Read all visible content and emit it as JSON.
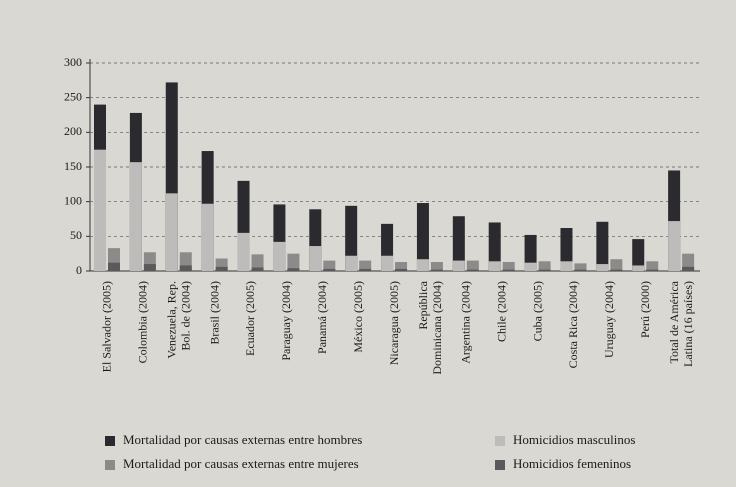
{
  "chart_data": {
    "type": "bar",
    "categories": [
      "El Salvador (2005)",
      "Colombia (2004)",
      "Venezuela, Rep. Bol. de (2004)",
      "Brasil (2004)",
      "Ecuador (2005)",
      "Paraguay (2004)",
      "Panamá (2004)",
      "México (2005)",
      "Nicaragua (2005)",
      "República Dominicana (2004)",
      "Argentina (2004)",
      "Chile (2004)",
      "Cuba (2005)",
      "Costa Rica (2004)",
      "Uruguay (2004)",
      "Perú (2000)",
      "Total de América Latina (16 países)"
    ],
    "series": [
      {
        "name": "Mortalidad por causas externas entre hombres",
        "color": "#2b2a2e",
        "values": [
          240,
          228,
          272,
          173,
          130,
          96,
          89,
          94,
          68,
          98,
          79,
          70,
          52,
          62,
          71,
          46,
          145
        ]
      },
      {
        "name": "Homicidios masculinos",
        "color": "#bdbcba",
        "values": [
          175,
          157,
          112,
          97,
          55,
          42,
          36,
          22,
          22,
          17,
          15,
          14,
          12,
          14,
          10,
          8,
          72
        ]
      },
      {
        "name": "Mortalidad por causas externas entre mujeres",
        "color": "#8c8b8a",
        "values": [
          33,
          27,
          27,
          18,
          24,
          25,
          15,
          15,
          13,
          13,
          15,
          13,
          14,
          11,
          17,
          14,
          25
        ]
      },
      {
        "name": "Homicidios femeninos",
        "color": "#5a5a5c",
        "values": [
          12,
          10,
          8,
          6,
          5,
          4,
          3,
          3,
          3,
          2,
          2,
          2,
          2,
          2,
          2,
          2,
          6
        ]
      }
    ],
    "ylim": [
      0,
      300
    ],
    "yticks": [
      0,
      50,
      100,
      150,
      200,
      250,
      300
    ],
    "grid": true
  }
}
